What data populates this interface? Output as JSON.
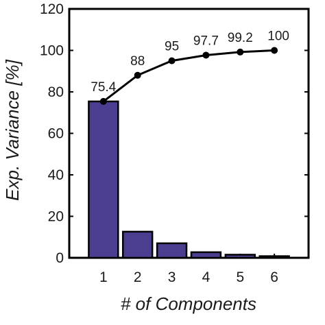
{
  "chart_data": {
    "type": "bar",
    "title": "",
    "xlabel": "# of Components",
    "ylabel": "Exp. Variance [%]",
    "categories": [
      "1",
      "2",
      "3",
      "4",
      "5",
      "6"
    ],
    "ylim": [
      0,
      120
    ],
    "yticks": [
      0,
      20,
      40,
      60,
      80,
      100,
      120
    ],
    "grid": false,
    "legend": "none",
    "series": [
      {
        "type": "bar",
        "values": [
          75.4,
          12.6,
          7.0,
          2.7,
          1.5,
          0.8
        ],
        "color": "#4b3d8f"
      },
      {
        "type": "line",
        "values": [
          75.4,
          88,
          95,
          97.7,
          99.2,
          100
        ],
        "data_labels": [
          "75.4",
          "88",
          "95",
          "97.7",
          "99.2",
          "100"
        ],
        "color": "#000000"
      }
    ]
  }
}
